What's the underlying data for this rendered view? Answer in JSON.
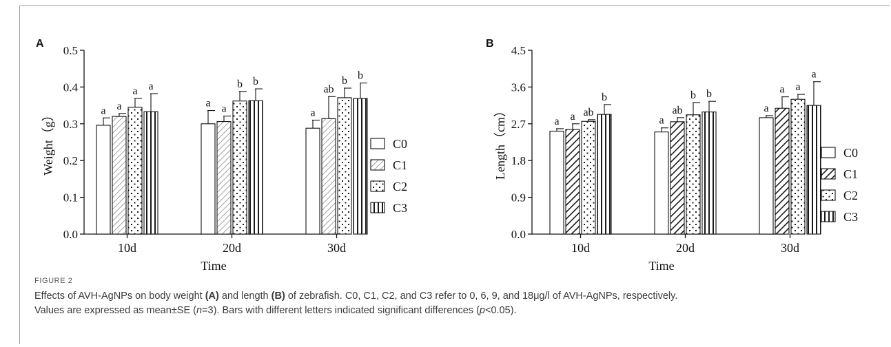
{
  "figure": {
    "caption_label": "FIGURE 2",
    "caption_line1_prefix": "Effects of AVH-AgNPs on body weight ",
    "caption_A": "(A)",
    "caption_line1_mid": " and length ",
    "caption_B": "(B)",
    "caption_line1_suffix": " of zebrafish. C0, C1, C2, and C3 refer to 0, 6, 9, and 18μg/l of AVH-AgNPs, respectively.",
    "caption_line2_prefix": "Values are expressed as mean±SE (",
    "caption_n": "n",
    "caption_line2_mid": "=3). Bars with different letters indicated significant differences (",
    "caption_p": "p",
    "caption_line2_suffix": "<0.05)."
  },
  "chart_data": [
    {
      "type": "bar",
      "panel_label": "A",
      "xlabel": "Time",
      "ylabel": "Weight（g）",
      "categories": [
        "10d",
        "20d",
        "30d"
      ],
      "ylim": [
        0,
        0.5
      ],
      "yticks": [
        "0.0",
        "0.1",
        "0.2",
        "0.3",
        "0.4",
        "0.5"
      ],
      "legend_position": "right",
      "series": [
        {
          "name": "C0",
          "values": [
            0.296,
            0.3,
            0.288
          ],
          "errors": [
            0.02,
            0.036,
            0.022
          ],
          "letters": [
            "a",
            "a",
            "a"
          ],
          "pattern": "none"
        },
        {
          "name": "C1",
          "values": [
            0.32,
            0.306,
            0.314
          ],
          "errors": [
            0.008,
            0.015,
            0.06
          ],
          "letters": [
            "a",
            "a",
            "ab"
          ],
          "pattern": "diagonal-light"
        },
        {
          "name": "C2",
          "values": [
            0.345,
            0.362,
            0.371
          ],
          "errors": [
            0.024,
            0.026,
            0.026
          ],
          "letters": [
            "a",
            "b",
            "b"
          ],
          "pattern": "dots"
        },
        {
          "name": "C3",
          "values": [
            0.333,
            0.363,
            0.369
          ],
          "errors": [
            0.049,
            0.032,
            0.042
          ],
          "letters": [
            "a",
            "b",
            "b"
          ],
          "pattern": "vertical"
        }
      ]
    },
    {
      "type": "bar",
      "panel_label": "B",
      "xlabel": "Time",
      "ylabel": "Length（cm）",
      "categories": [
        "10d",
        "20d",
        "30d"
      ],
      "ylim": [
        0,
        4.5
      ],
      "yticks": [
        "0.0",
        "0.9",
        "1.8",
        "2.7",
        "3.6",
        "4.5"
      ],
      "legend_position": "right",
      "series": [
        {
          "name": "C0",
          "values": [
            2.52,
            2.5,
            2.85
          ],
          "errors": [
            0.06,
            0.1,
            0.05
          ],
          "letters": [
            "a",
            "a",
            "a"
          ],
          "pattern": "none"
        },
        {
          "name": "C1",
          "values": [
            2.56,
            2.75,
            3.08
          ],
          "errors": [
            0.14,
            0.1,
            0.28
          ],
          "letters": [
            "a",
            "ab",
            "a"
          ],
          "pattern": "diagonal-bold"
        },
        {
          "name": "C2",
          "values": [
            2.76,
            2.92,
            3.3
          ],
          "errors": [
            0.04,
            0.3,
            0.12
          ],
          "letters": [
            "ab",
            "b",
            "a"
          ],
          "pattern": "dots"
        },
        {
          "name": "C3",
          "values": [
            2.93,
            2.99,
            3.15
          ],
          "errors": [
            0.24,
            0.26,
            0.58
          ],
          "letters": [
            "b",
            "b",
            "a"
          ],
          "pattern": "vertical"
        }
      ]
    }
  ]
}
